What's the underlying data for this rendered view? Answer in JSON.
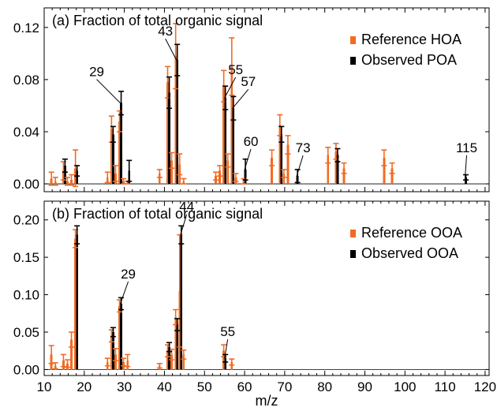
{
  "chart_data": [
    {
      "type": "bar",
      "title": "(a) Fraction of total organic signal",
      "xlabel": "m/z",
      "ylabel": "",
      "xlim": [
        10,
        121
      ],
      "ylim": [
        -0.006,
        0.135
      ],
      "yticks": [
        "0.00",
        "0.04",
        "0.08",
        "0.12"
      ],
      "ytick_values": [
        0.0,
        0.04,
        0.08,
        0.12
      ],
      "grid": false,
      "legend_position": "top-right",
      "colors": {
        "reference": "#f26b21",
        "observed": "#000000"
      },
      "series": [
        {
          "name": "Reference HOA",
          "values": [
            {
              "x": 12,
              "y": 0.004,
              "err": 0.005
            },
            {
              "x": 13,
              "y": 0.002,
              "err": 0.003
            },
            {
              "x": 15,
              "y": 0.01,
              "err": 0.007
            },
            {
              "x": 16,
              "y": 0.002,
              "err": 0.003
            },
            {
              "x": 17,
              "y": 0.003,
              "err": 0.004
            },
            {
              "x": 18,
              "y": 0.012,
              "err": 0.014
            },
            {
              "x": 26,
              "y": 0.005,
              "err": 0.004
            },
            {
              "x": 27,
              "y": 0.042,
              "err": 0.01
            },
            {
              "x": 28,
              "y": 0.008,
              "err": 0.006
            },
            {
              "x": 29,
              "y": 0.048,
              "err": 0.008
            },
            {
              "x": 30,
              "y": 0.002,
              "err": 0.002
            },
            {
              "x": 31,
              "y": 0.001,
              "err": 0.001
            },
            {
              "x": 39,
              "y": 0.008,
              "err": 0.003
            },
            {
              "x": 41,
              "y": 0.078,
              "err": 0.012
            },
            {
              "x": 42,
              "y": 0.018,
              "err": 0.006
            },
            {
              "x": 43,
              "y": 0.098,
              "err": 0.025
            },
            {
              "x": 44,
              "y": 0.015,
              "err": 0.008
            },
            {
              "x": 45,
              "y": 0.002,
              "err": 0.002
            },
            {
              "x": 53,
              "y": 0.006,
              "err": 0.003
            },
            {
              "x": 54,
              "y": 0.01,
              "err": 0.004
            },
            {
              "x": 55,
              "y": 0.075,
              "err": 0.012
            },
            {
              "x": 56,
              "y": 0.018,
              "err": 0.005
            },
            {
              "x": 57,
              "y": 0.09,
              "err": 0.022
            },
            {
              "x": 58,
              "y": 0.005,
              "err": 0.003
            },
            {
              "x": 60,
              "y": 0.002,
              "err": 0.002
            },
            {
              "x": 67,
              "y": 0.02,
              "err": 0.006
            },
            {
              "x": 69,
              "y": 0.045,
              "err": 0.008
            },
            {
              "x": 70,
              "y": 0.008,
              "err": 0.003
            },
            {
              "x": 71,
              "y": 0.03,
              "err": 0.007
            },
            {
              "x": 81,
              "y": 0.022,
              "err": 0.006
            },
            {
              "x": 83,
              "y": 0.025,
              "err": 0.006
            },
            {
              "x": 85,
              "y": 0.012,
              "err": 0.004
            },
            {
              "x": 95,
              "y": 0.02,
              "err": 0.006
            },
            {
              "x": 97,
              "y": 0.012,
              "err": 0.004
            }
          ]
        },
        {
          "name": "Observed POA",
          "values": [
            {
              "x": 15,
              "y": 0.014,
              "err": 0.005
            },
            {
              "x": 18,
              "y": 0.01,
              "err": 0.004
            },
            {
              "x": 27,
              "y": 0.038,
              "err": 0.006
            },
            {
              "x": 29,
              "y": 0.062,
              "err": 0.009
            },
            {
              "x": 31,
              "y": 0.01,
              "err": 0.008
            },
            {
              "x": 41,
              "y": 0.07,
              "err": 0.012
            },
            {
              "x": 43,
              "y": 0.095,
              "err": 0.012
            },
            {
              "x": 55,
              "y": 0.066,
              "err": 0.009
            },
            {
              "x": 57,
              "y": 0.058,
              "err": 0.009
            },
            {
              "x": 60,
              "y": 0.011,
              "err": 0.008
            },
            {
              "x": 69,
              "y": 0.038,
              "err": 0.006
            },
            {
              "x": 73,
              "y": 0.006,
              "err": 0.005
            },
            {
              "x": 83,
              "y": 0.022,
              "err": 0.005
            },
            {
              "x": 115,
              "y": 0.005,
              "err": 0.002
            }
          ]
        }
      ],
      "annotations": [
        {
          "text": "29",
          "x": 29
        },
        {
          "text": "43",
          "x": 43
        },
        {
          "text": "55",
          "x": 55
        },
        {
          "text": "57",
          "x": 57
        },
        {
          "text": "60",
          "x": 60
        },
        {
          "text": "73",
          "x": 73
        },
        {
          "text": "115",
          "x": 115
        }
      ]
    },
    {
      "type": "bar",
      "title": "(b) Fraction of total organic signal",
      "xlabel": "m/z",
      "ylabel": "",
      "xlim": [
        10,
        121
      ],
      "ylim": [
        -0.008,
        0.225
      ],
      "yticks": [
        "0.00",
        "0.05",
        "0.10",
        "0.15",
        "0.20"
      ],
      "ytick_values": [
        0.0,
        0.05,
        0.1,
        0.15,
        0.2
      ],
      "xticks": [
        "10",
        "20",
        "30",
        "40",
        "50",
        "60",
        "70",
        "80",
        "90",
        "100",
        "110",
        "120"
      ],
      "xtick_values": [
        10,
        20,
        30,
        40,
        50,
        60,
        70,
        80,
        90,
        100,
        110,
        120
      ],
      "grid": false,
      "legend_position": "top-right",
      "colors": {
        "reference": "#f26b21",
        "observed": "#000000"
      },
      "series": [
        {
          "name": "Reference OOA",
          "values": [
            {
              "x": 12,
              "y": 0.02,
              "err": 0.012
            },
            {
              "x": 13,
              "y": 0.005,
              "err": 0.004
            },
            {
              "x": 15,
              "y": 0.012,
              "err": 0.008
            },
            {
              "x": 16,
              "y": 0.008,
              "err": 0.005
            },
            {
              "x": 17,
              "y": 0.04,
              "err": 0.01
            },
            {
              "x": 18,
              "y": 0.175,
              "err": 0.012
            },
            {
              "x": 26,
              "y": 0.01,
              "err": 0.005
            },
            {
              "x": 27,
              "y": 0.045,
              "err": 0.008
            },
            {
              "x": 28,
              "y": 0.02,
              "err": 0.008
            },
            {
              "x": 29,
              "y": 0.085,
              "err": 0.008
            },
            {
              "x": 30,
              "y": 0.01,
              "err": 0.005
            },
            {
              "x": 31,
              "y": 0.012,
              "err": 0.008
            },
            {
              "x": 39,
              "y": 0.005,
              "err": 0.003
            },
            {
              "x": 41,
              "y": 0.025,
              "err": 0.008
            },
            {
              "x": 42,
              "y": 0.02,
              "err": 0.007
            },
            {
              "x": 43,
              "y": 0.07,
              "err": 0.01
            },
            {
              "x": 44,
              "y": 0.105,
              "err": 0.075
            },
            {
              "x": 45,
              "y": 0.02,
              "err": 0.006
            },
            {
              "x": 55,
              "y": 0.025,
              "err": 0.008
            },
            {
              "x": 57,
              "y": 0.01,
              "err": 0.004
            }
          ]
        },
        {
          "name": "Observed OOA",
          "values": [
            {
              "x": 18,
              "y": 0.18,
              "err": 0.012
            },
            {
              "x": 27,
              "y": 0.05,
              "err": 0.006
            },
            {
              "x": 29,
              "y": 0.088,
              "err": 0.008
            },
            {
              "x": 41,
              "y": 0.03,
              "err": 0.006
            },
            {
              "x": 43,
              "y": 0.06,
              "err": 0.008
            },
            {
              "x": 44,
              "y": 0.18,
              "err": 0.012
            },
            {
              "x": 55,
              "y": 0.015,
              "err": 0.005
            }
          ]
        }
      ],
      "annotations": [
        {
          "text": "29",
          "x": 29
        },
        {
          "text": "44",
          "x": 44
        },
        {
          "text": "55",
          "x": 55
        }
      ]
    }
  ]
}
